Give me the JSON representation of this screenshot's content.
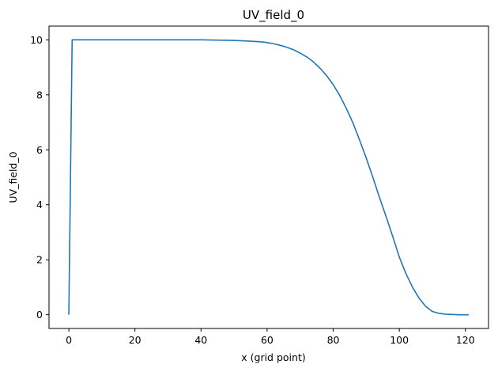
{
  "chart_data": {
    "type": "line",
    "title": "UV_field_0",
    "xlabel": "x (grid point)",
    "ylabel": "UV_field_0",
    "xlim": [
      -6,
      127
    ],
    "ylim": [
      -0.5,
      10.5
    ],
    "xticks": [
      0,
      20,
      40,
      60,
      80,
      100,
      120
    ],
    "yticks": [
      0,
      2,
      4,
      6,
      8,
      10
    ],
    "grid": false,
    "line_color": "#1f77b4",
    "series": [
      {
        "x": [
          0,
          1,
          10,
          20,
          30,
          40,
          45,
          50,
          55,
          58,
          60,
          62,
          64,
          66,
          68,
          70,
          72,
          74,
          76,
          78,
          80,
          82,
          84,
          86,
          88,
          90,
          92,
          94,
          96,
          98,
          100,
          102,
          104,
          106,
          108,
          110,
          112,
          114,
          116,
          118,
          121
        ],
        "y": [
          0,
          10,
          10,
          10,
          10,
          10,
          9.99,
          9.98,
          9.95,
          9.93,
          9.9,
          9.86,
          9.8,
          9.73,
          9.64,
          9.52,
          9.38,
          9.2,
          8.97,
          8.7,
          8.37,
          7.97,
          7.5,
          6.97,
          6.35,
          5.7,
          5.0,
          4.27,
          3.57,
          2.85,
          2.1,
          1.5,
          1.0,
          0.6,
          0.3,
          0.12,
          0.05,
          0.02,
          0.01,
          0.0,
          0.0
        ]
      }
    ]
  }
}
